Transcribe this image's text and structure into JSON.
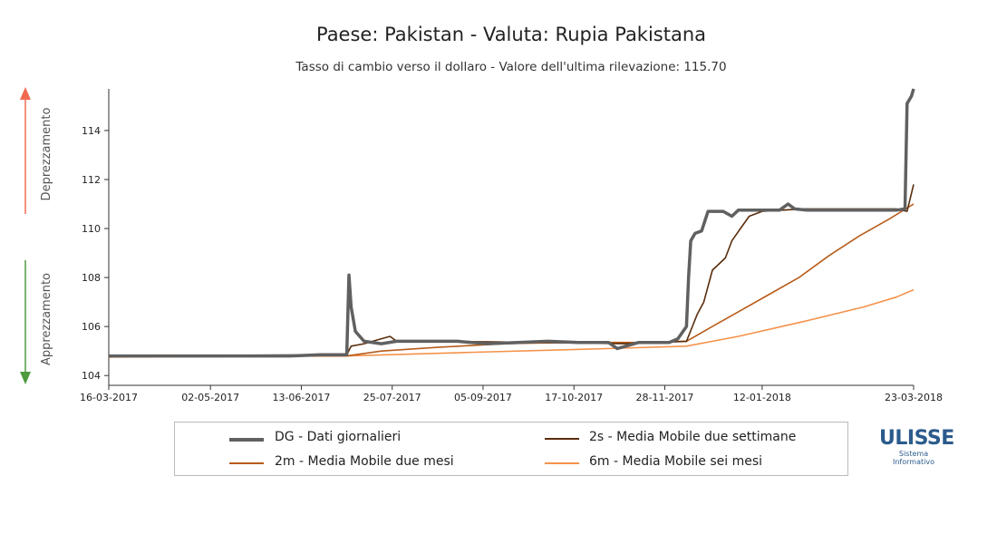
{
  "chart_data": {
    "type": "line",
    "title": "Paese: Pakistan - Valuta: Rupia Pakistana",
    "subtitle": "Tasso di cambio verso il dollaro - Valore dell'ultima rilevazione: 115.70",
    "y_side_labels": {
      "up": "Deprezzamento",
      "down": "Apprezzamento"
    },
    "y_ticks": [
      104,
      106,
      108,
      110,
      112,
      114
    ],
    "ylim": [
      103.6,
      115.7
    ],
    "x_ticks": [
      "16-03-2017",
      "02-05-2017",
      "13-06-2017",
      "25-07-2017",
      "05-09-2017",
      "17-10-2017",
      "28-11-2017",
      "12-01-2018",
      "23-03-2018"
    ],
    "x_start": "2017-03-16",
    "x_end": "2018-03-23",
    "grid": false,
    "legend_position": "bottom",
    "series": [
      {
        "name": "DG - Dati giornalieri",
        "color": "#606060",
        "points": [
          [
            "2017-03-16",
            104.8
          ],
          [
            "2017-03-30",
            104.8
          ],
          [
            "2017-04-13",
            104.8
          ],
          [
            "2017-04-27",
            104.8
          ],
          [
            "2017-05-11",
            104.8
          ],
          [
            "2017-05-25",
            104.8
          ],
          [
            "2017-06-08",
            104.8
          ],
          [
            "2017-06-22",
            104.85
          ],
          [
            "2017-07-01",
            104.85
          ],
          [
            "2017-07-04",
            104.85
          ],
          [
            "2017-07-05",
            108.1
          ],
          [
            "2017-07-06",
            106.8
          ],
          [
            "2017-07-08",
            105.8
          ],
          [
            "2017-07-12",
            105.4
          ],
          [
            "2017-07-20",
            105.3
          ],
          [
            "2017-07-27",
            105.4
          ],
          [
            "2017-08-10",
            105.4
          ],
          [
            "2017-08-24",
            105.4
          ],
          [
            "2017-09-07",
            105.3
          ],
          [
            "2017-09-21",
            105.35
          ],
          [
            "2017-10-05",
            105.4
          ],
          [
            "2017-10-19",
            105.35
          ],
          [
            "2017-11-02",
            105.35
          ],
          [
            "2017-11-06",
            105.1
          ],
          [
            "2017-11-16",
            105.35
          ],
          [
            "2017-11-30",
            105.35
          ],
          [
            "2017-12-04",
            105.5
          ],
          [
            "2017-12-08",
            106.0
          ],
          [
            "2017-12-09",
            108.0
          ],
          [
            "2017-12-10",
            109.5
          ],
          [
            "2017-12-12",
            109.8
          ],
          [
            "2017-12-15",
            109.9
          ],
          [
            "2017-12-18",
            110.7
          ],
          [
            "2017-12-25",
            110.7
          ],
          [
            "2017-12-29",
            110.5
          ],
          [
            "2018-01-01",
            110.75
          ],
          [
            "2018-01-10",
            110.75
          ],
          [
            "2018-01-20",
            110.75
          ],
          [
            "2018-01-24",
            111.0
          ],
          [
            "2018-01-27",
            110.8
          ],
          [
            "2018-02-02",
            110.75
          ],
          [
            "2018-02-15",
            110.75
          ],
          [
            "2018-03-01",
            110.75
          ],
          [
            "2018-03-15",
            110.75
          ],
          [
            "2018-03-19",
            110.8
          ],
          [
            "2018-03-20",
            115.1
          ],
          [
            "2018-03-22",
            115.4
          ],
          [
            "2018-03-23",
            115.7
          ]
        ]
      },
      {
        "name": "2s - Media Mobile due settimane",
        "color": "#5a2d0c",
        "points": [
          [
            "2017-03-16",
            104.8
          ],
          [
            "2017-07-04",
            104.85
          ],
          [
            "2017-07-06",
            105.2
          ],
          [
            "2017-07-12",
            105.3
          ],
          [
            "2017-07-18",
            105.45
          ],
          [
            "2017-07-24",
            105.6
          ],
          [
            "2017-07-27",
            105.4
          ],
          [
            "2017-08-15",
            105.4
          ],
          [
            "2017-10-01",
            105.35
          ],
          [
            "2017-11-10",
            105.3
          ],
          [
            "2017-12-08",
            105.4
          ],
          [
            "2017-12-13",
            106.5
          ],
          [
            "2017-12-16",
            107.0
          ],
          [
            "2017-12-20",
            108.3
          ],
          [
            "2017-12-26",
            108.8
          ],
          [
            "2017-12-29",
            109.5
          ],
          [
            "2018-01-02",
            110.0
          ],
          [
            "2018-01-06",
            110.5
          ],
          [
            "2018-01-12",
            110.7
          ],
          [
            "2018-01-31",
            110.8
          ],
          [
            "2018-03-15",
            110.8
          ],
          [
            "2018-03-20",
            110.7
          ],
          [
            "2018-03-23",
            111.8
          ]
        ]
      },
      {
        "name": "2m - Media Mobile due mesi",
        "color": "#b85c1a",
        "points": [
          [
            "2017-03-16",
            104.8
          ],
          [
            "2017-07-04",
            104.8
          ],
          [
            "2017-07-20",
            105.0
          ],
          [
            "2017-08-15",
            105.15
          ],
          [
            "2017-09-15",
            105.3
          ],
          [
            "2017-10-15",
            105.35
          ],
          [
            "2017-11-15",
            105.35
          ],
          [
            "2017-12-08",
            105.4
          ],
          [
            "2017-12-20",
            106.0
          ],
          [
            "2018-01-01",
            106.6
          ],
          [
            "2018-01-15",
            107.3
          ],
          [
            "2018-01-29",
            108.0
          ],
          [
            "2018-02-12",
            108.9
          ],
          [
            "2018-02-26",
            109.7
          ],
          [
            "2018-03-12",
            110.4
          ],
          [
            "2018-03-23",
            111.0
          ]
        ]
      },
      {
        "name": "6m - Media Mobile sei mesi",
        "color": "#f4924a",
        "points": [
          [
            "2017-03-16",
            104.75
          ],
          [
            "2017-07-04",
            104.8
          ],
          [
            "2017-09-01",
            104.95
          ],
          [
            "2017-11-01",
            105.1
          ],
          [
            "2017-12-08",
            105.2
          ],
          [
            "2018-01-01",
            105.6
          ],
          [
            "2018-01-31",
            106.2
          ],
          [
            "2018-02-28",
            106.8
          ],
          [
            "2018-03-15",
            107.2
          ],
          [
            "2018-03-23",
            107.5
          ]
        ]
      }
    ]
  },
  "legend": [
    {
      "label": "DG - Dati giornalieri",
      "color": "#606060"
    },
    {
      "label": "2s - Media Mobile due settimane",
      "color": "#5a2d0c"
    },
    {
      "label": "2m - Media Mobile due mesi",
      "color": "#b85c1a"
    },
    {
      "label": "6m - Media Mobile sei mesi",
      "color": "#f4924a"
    }
  ],
  "logo": {
    "name": "ULISSE",
    "sub1": "Sistema",
    "sub2": "Informativo"
  },
  "colors": {
    "depreciation_arrow": "#f06a50",
    "appreciation_arrow": "#4e9a3e",
    "logo": "#2b5b8c"
  }
}
